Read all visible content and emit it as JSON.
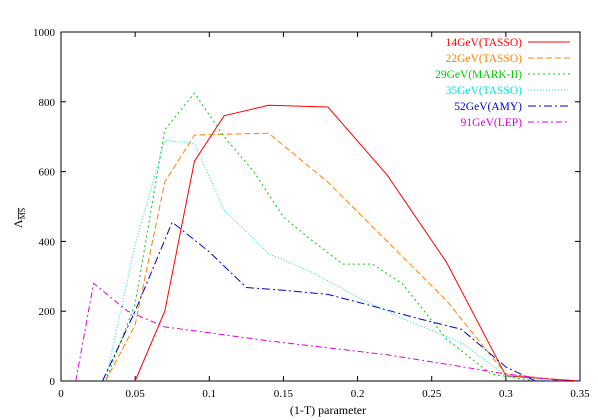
{
  "chart_data": {
    "type": "line",
    "title": "",
    "xlabel": "(1-T) parameter",
    "ylabel": "Λ",
    "ylabel_subscript": "MS",
    "xlim": [
      0,
      0.35
    ],
    "ylim": [
      0,
      1000
    ],
    "xticks": [
      0,
      0.05,
      0.1,
      0.15,
      0.2,
      0.25,
      0.3,
      0.35
    ],
    "xtick_labels": [
      "0",
      "0.05",
      "0.1",
      "0.15",
      "0.2",
      "0.25",
      "0.3",
      "0.35"
    ],
    "yticks": [
      0,
      200,
      400,
      600,
      800,
      1000
    ],
    "ytick_labels": [
      "0",
      "200",
      "400",
      "600",
      "800",
      "1000"
    ],
    "grid": false,
    "legend_position": "top-right",
    "series": [
      {
        "name": "14GeV(TASSO)",
        "color": "#ff0000",
        "dash": "",
        "x": [
          0.05,
          0.07,
          0.09,
          0.11,
          0.14,
          0.18,
          0.22,
          0.26,
          0.3,
          0.35
        ],
        "y": [
          0,
          200,
          630,
          760,
          790,
          785,
          590,
          340,
          15,
          0
        ]
      },
      {
        "name": "22GeV(TASSO)",
        "color": "#ff8000",
        "dash": "6,3",
        "x": [
          0.03,
          0.05,
          0.07,
          0.09,
          0.14,
          0.18,
          0.22,
          0.26,
          0.3,
          0.34
        ],
        "y": [
          0,
          160,
          570,
          705,
          710,
          570,
          400,
          230,
          20,
          0
        ]
      },
      {
        "name": "29GeV(MARK-II)",
        "color": "#00cc00",
        "dash": "2,3",
        "x": [
          0.03,
          0.05,
          0.07,
          0.09,
          0.11,
          0.13,
          0.15,
          0.17,
          0.19,
          0.21,
          0.23,
          0.26,
          0.29,
          0.32
        ],
        "y": [
          0,
          220,
          720,
          825,
          700,
          600,
          470,
          400,
          335,
          335,
          280,
          120,
          20,
          0
        ]
      },
      {
        "name": "35GeV(TASSO)",
        "color": "#00e0e0",
        "dash": "1,2",
        "x": [
          0.03,
          0.05,
          0.07,
          0.09,
          0.11,
          0.14,
          0.17,
          0.2,
          0.23,
          0.27,
          0.3,
          0.33
        ],
        "y": [
          0,
          390,
          690,
          680,
          490,
          365,
          310,
          240,
          180,
          110,
          15,
          0
        ]
      },
      {
        "name": "52GeV(AMY)",
        "color": "#0000cc",
        "dash": "8,3,2,3",
        "x": [
          0.028,
          0.05,
          0.075,
          0.1,
          0.125,
          0.15,
          0.18,
          0.21,
          0.24,
          0.27,
          0.3,
          0.32,
          0.35
        ],
        "y": [
          0,
          200,
          455,
          370,
          268,
          260,
          248,
          215,
          180,
          148,
          40,
          0,
          0
        ]
      },
      {
        "name": "91GeV(LEP)",
        "color": "#e000e0",
        "dash": "6,3,2,3",
        "x": [
          0.01,
          0.022,
          0.045,
          0.07,
          0.1,
          0.14,
          0.18,
          0.22,
          0.26,
          0.3,
          0.34
        ],
        "y": [
          0,
          280,
          200,
          155,
          138,
          115,
          95,
          75,
          48,
          20,
          0
        ]
      }
    ]
  }
}
